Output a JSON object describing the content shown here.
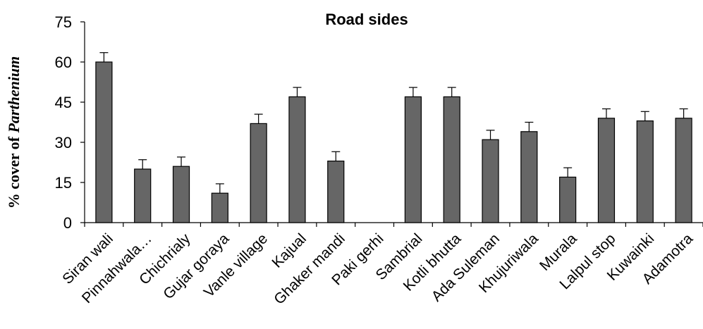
{
  "chart_data": {
    "type": "bar",
    "title": "Road sides",
    "ylabel_prefix": "% cover of ",
    "ylabel_italic": "Parthenium",
    "xlabel": "",
    "ylim": [
      0,
      75
    ],
    "yticks": [
      0,
      15,
      30,
      45,
      60,
      75
    ],
    "grid": false,
    "legend": "none",
    "bar_color": "#666666",
    "categories": [
      "Siran wali",
      "Pinnahwala…",
      "Chichrialy",
      "Gujar goraya",
      "Vanle village",
      "Kajual",
      "Ghaker mandi",
      "Paki gerhi",
      "Sambrial",
      "Kotli bhutta",
      "Ada Suleman",
      "Khujuriwala",
      "Murala",
      "Lalpul stop",
      "Kuwainki",
      "Adamotra"
    ],
    "values": [
      60,
      20,
      21,
      11,
      37,
      47,
      23,
      0,
      47,
      47,
      31,
      34,
      17,
      39,
      38,
      39
    ],
    "errors": [
      3.5,
      3.5,
      3.5,
      3.5,
      3.5,
      3.5,
      3.5,
      0,
      3.5,
      3.5,
      3.5,
      3.5,
      3.5,
      3.5,
      3.5,
      3.5
    ]
  }
}
